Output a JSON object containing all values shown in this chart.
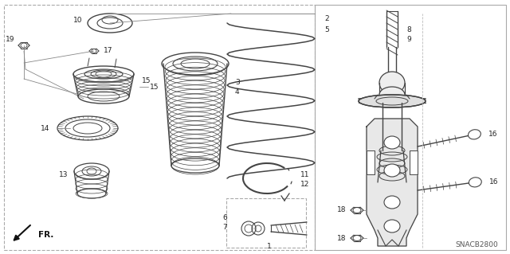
{
  "bg": "#ffffff",
  "lc": "#444444",
  "lc2": "#888888",
  "fw": 6.4,
  "fh": 3.19,
  "dpi": 100,
  "snacb": "SNACB2800",
  "fr": "FR."
}
